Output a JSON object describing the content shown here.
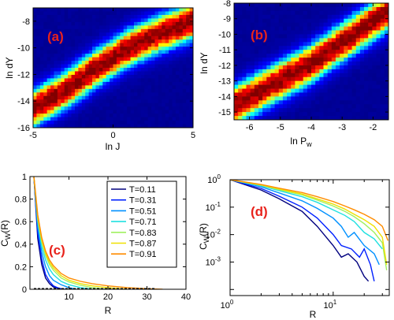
{
  "chart_data": [
    {
      "panel": "(a)",
      "type": "heatmap",
      "xlabel": "ln J",
      "ylabel": "ln dY",
      "xlim": [
        -5,
        5
      ],
      "ylim": [
        -16,
        -7
      ],
      "xticks": [
        -5,
        0,
        5
      ],
      "yticks": [
        -16,
        -14,
        -12,
        -10,
        -8
      ],
      "ridge": {
        "x": [
          -5,
          -3,
          -1,
          1,
          3,
          5
        ],
        "y": [
          -14.6,
          -13.2,
          -11.5,
          -10.0,
          -8.9,
          -8.0
        ]
      },
      "colormap": [
        "#00008f",
        "#0000ff",
        "#00ffff",
        "#ffff00",
        "#ff0000",
        "#800000"
      ]
    },
    {
      "panel": "(b)",
      "type": "heatmap",
      "xlabel": "ln P_w",
      "ylabel": "ln dY",
      "xlim": [
        -6.5,
        -1.5
      ],
      "ylim": [
        -15.5,
        -8
      ],
      "xticks": [
        -6,
        -5,
        -4,
        -3,
        -2
      ],
      "yticks": [
        -15,
        -14,
        -13,
        -12,
        -11,
        -10,
        -9,
        -8
      ],
      "ridge": {
        "x": [
          -6.5,
          -4,
          -1.5
        ],
        "y": [
          -14.6,
          -11.9,
          -8.5
        ]
      },
      "colormap": [
        "#00008f",
        "#0000ff",
        "#00ffff",
        "#ffff00",
        "#ff0000",
        "#800000"
      ]
    },
    {
      "panel": "(c)",
      "type": "line",
      "xlabel": "R",
      "ylabel": "C_W(R)",
      "xlim": [
        0,
        40
      ],
      "ylim": [
        0,
        1
      ],
      "xticks": [
        10,
        20,
        30,
        40
      ],
      "yticks": [
        0,
        0.2,
        0.4,
        0.6,
        0.8,
        1
      ],
      "legend_position": "top-right",
      "series": [
        {
          "name": "T=0.11",
          "color": "#00007f",
          "x": [
            1,
            2,
            3,
            4,
            5,
            6,
            7,
            8
          ],
          "y": [
            1,
            0.45,
            0.22,
            0.1,
            0.05,
            0.02,
            0.01,
            0
          ]
        },
        {
          "name": "T=0.31",
          "color": "#0020ff",
          "x": [
            1,
            2,
            3,
            4,
            5,
            6,
            7,
            8,
            9
          ],
          "y": [
            1,
            0.5,
            0.27,
            0.13,
            0.07,
            0.03,
            0.015,
            0.005,
            0
          ]
        },
        {
          "name": "T=0.51",
          "color": "#0090ff",
          "x": [
            1,
            2,
            3,
            4,
            5,
            6,
            8,
            10,
            12
          ],
          "y": [
            1,
            0.55,
            0.33,
            0.2,
            0.12,
            0.08,
            0.04,
            0.015,
            0
          ]
        },
        {
          "name": "T=0.71",
          "color": "#20e0e0",
          "x": [
            1,
            2,
            3,
            4,
            5,
            6,
            8,
            10,
            13,
            16
          ],
          "y": [
            1,
            0.6,
            0.38,
            0.26,
            0.18,
            0.13,
            0.07,
            0.04,
            0.015,
            0
          ]
        },
        {
          "name": "T=0.83",
          "color": "#a0f060",
          "x": [
            1,
            2,
            3,
            4,
            5,
            6,
            8,
            10,
            13,
            16,
            20
          ],
          "y": [
            1,
            0.62,
            0.42,
            0.3,
            0.22,
            0.17,
            0.1,
            0.065,
            0.035,
            0.015,
            0
          ]
        },
        {
          "name": "T=0.87",
          "color": "#f0e000",
          "x": [
            1,
            2,
            3,
            4,
            5,
            6,
            8,
            10,
            13,
            16,
            20,
            25
          ],
          "y": [
            1,
            0.64,
            0.44,
            0.32,
            0.24,
            0.19,
            0.12,
            0.08,
            0.05,
            0.03,
            0.015,
            0
          ]
        },
        {
          "name": "T=0.91",
          "color": "#ff8c00",
          "x": [
            1,
            2,
            3,
            4,
            5,
            6,
            8,
            10,
            13,
            16,
            20,
            25,
            30,
            34
          ],
          "y": [
            1,
            0.66,
            0.46,
            0.34,
            0.26,
            0.21,
            0.14,
            0.1,
            0.07,
            0.05,
            0.03,
            0.015,
            0.005,
            0
          ]
        }
      ]
    },
    {
      "panel": "(d)",
      "type": "line",
      "xlabel": "R",
      "ylabel": "C_W(R)",
      "xscale": "log",
      "yscale": "log",
      "xlim": [
        1,
        35
      ],
      "ylim": [
        6e-05,
        1
      ],
      "xticks": [
        1,
        10
      ],
      "xtick_labels": [
        "10^0",
        "10^1"
      ],
      "yticks": [
        0.0001,
        0.001,
        0.01,
        0.1,
        1
      ],
      "ytick_labels": [
        "",
        "10^-3",
        "10^-2",
        "10^-1",
        "10^0"
      ],
      "series": [
        {
          "name": "T=0.11",
          "color": "#00007f",
          "x": [
            1,
            2,
            3,
            5,
            7,
            10,
            12,
            14,
            17,
            20,
            22
          ],
          "y": [
            1,
            0.42,
            0.2,
            0.07,
            0.02,
            0.004,
            0.0015,
            0.002,
            0.001,
            0.0003,
            0.0002
          ]
        },
        {
          "name": "T=0.31",
          "color": "#0020ff",
          "x": [
            1,
            2,
            3,
            5,
            7,
            10,
            12,
            15,
            18,
            20,
            23,
            25
          ],
          "y": [
            1,
            0.48,
            0.25,
            0.1,
            0.04,
            0.01,
            0.004,
            0.003,
            0.0015,
            0.003,
            0.0008,
            0.0002
          ]
        },
        {
          "name": "T=0.51",
          "color": "#0090ff",
          "x": [
            1,
            2,
            3,
            5,
            7,
            10,
            12,
            14,
            16,
            20,
            25,
            28
          ],
          "y": [
            1,
            0.55,
            0.33,
            0.17,
            0.09,
            0.04,
            0.02,
            0.008,
            0.012,
            0.004,
            0.002,
            0.0008
          ]
        },
        {
          "name": "T=0.71",
          "color": "#20e0e0",
          "x": [
            1,
            2,
            3,
            5,
            7,
            10,
            13,
            16,
            20,
            25,
            30
          ],
          "y": [
            1,
            0.6,
            0.4,
            0.24,
            0.15,
            0.08,
            0.05,
            0.03,
            0.012,
            0.007,
            0.003
          ]
        },
        {
          "name": "T=0.83",
          "color": "#a0f060",
          "x": [
            1,
            2,
            3,
            5,
            7,
            10,
            13,
            16,
            20,
            25,
            30,
            33
          ],
          "y": [
            1,
            0.63,
            0.43,
            0.28,
            0.18,
            0.11,
            0.07,
            0.045,
            0.025,
            0.012,
            0.005,
            0.0005
          ]
        },
        {
          "name": "T=0.87",
          "color": "#f0e000",
          "x": [
            1,
            2,
            3,
            5,
            7,
            10,
            13,
            16,
            20,
            25,
            30,
            33
          ],
          "y": [
            1,
            0.65,
            0.46,
            0.3,
            0.2,
            0.13,
            0.085,
            0.055,
            0.035,
            0.02,
            0.008,
            0.0008
          ]
        },
        {
          "name": "T=0.91",
          "color": "#ff8c00",
          "x": [
            1,
            2,
            3,
            5,
            7,
            10,
            13,
            16,
            20,
            25,
            30,
            34
          ],
          "y": [
            1,
            0.67,
            0.49,
            0.34,
            0.24,
            0.16,
            0.11,
            0.08,
            0.055,
            0.035,
            0.02,
            0.006
          ]
        }
      ]
    }
  ]
}
